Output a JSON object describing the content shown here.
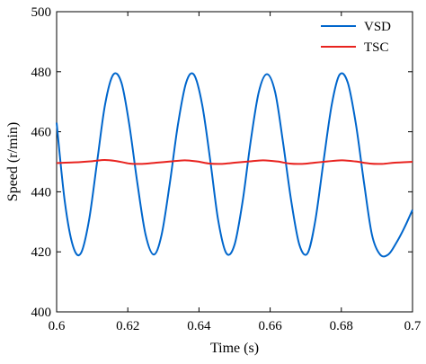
{
  "chart_data": {
    "type": "line",
    "title": "",
    "xlabel": "Time (s)",
    "ylabel": "Speed (r/min)",
    "xlim": [
      0.6,
      0.7
    ],
    "ylim": [
      400,
      500
    ],
    "x_ticks": [
      0.6,
      0.62,
      0.64,
      0.66,
      0.68,
      0.7
    ],
    "x_tick_labels": [
      "0.6",
      "0.62",
      "0.64",
      "0.66",
      "0.68",
      "0.7"
    ],
    "y_ticks": [
      400,
      420,
      440,
      460,
      480,
      500
    ],
    "y_tick_labels": [
      "400",
      "420",
      "440",
      "460",
      "480",
      "500"
    ],
    "grid": false,
    "legend_position": "top-right",
    "series": [
      {
        "name": "VSD",
        "color": "#0066cc",
        "x": [
          0.6,
          0.6023,
          0.6046,
          0.6068,
          0.6091,
          0.6114,
          0.6136,
          0.6159,
          0.6182,
          0.6204,
          0.6227,
          0.625,
          0.6273,
          0.6295,
          0.6318,
          0.6341,
          0.6364,
          0.6386,
          0.6409,
          0.6432,
          0.6454,
          0.6477,
          0.65,
          0.6523,
          0.6545,
          0.6568,
          0.6591,
          0.6614,
          0.6636,
          0.6659,
          0.6682,
          0.6705,
          0.6727,
          0.675,
          0.6773,
          0.6795,
          0.6818,
          0.6841,
          0.6864,
          0.6886,
          0.6909,
          0.6932,
          0.6954,
          0.6977,
          0.7
        ],
        "values": [
          463.0,
          436.7,
          421.9,
          419.5,
          430.5,
          450.2,
          469.0,
          479.0,
          476.4,
          462.5,
          442.8,
          425.7,
          419.1,
          425.7,
          442.8,
          462.5,
          476.4,
          479.0,
          469.0,
          450.2,
          430.5,
          419.5,
          422.4,
          437.1,
          456.6,
          473.2,
          479.2,
          473.2,
          456.6,
          437.1,
          422.4,
          419.5,
          430.5,
          450.2,
          469.0,
          479.0,
          476.4,
          462.5,
          442.8,
          425.7,
          419.1,
          419.1,
          422.9,
          428.0,
          434.0
        ]
      },
      {
        "name": "TSC",
        "color": "#e8231f",
        "x": [
          0.6,
          0.605,
          0.61,
          0.6135,
          0.617,
          0.6205,
          0.624,
          0.628,
          0.632,
          0.636,
          0.6395,
          0.643,
          0.6465,
          0.65,
          0.654,
          0.658,
          0.662,
          0.6655,
          0.669,
          0.6725,
          0.676,
          0.68,
          0.684,
          0.688,
          0.6915,
          0.695,
          0.7
        ],
        "values": [
          449.6,
          449.8,
          450.2,
          450.6,
          450.2,
          449.4,
          449.3,
          449.7,
          450.1,
          450.5,
          450.1,
          449.4,
          449.3,
          449.7,
          450.1,
          450.5,
          450.1,
          449.4,
          449.3,
          449.7,
          450.1,
          450.5,
          450.1,
          449.4,
          449.3,
          449.7,
          450.0
        ]
      }
    ]
  }
}
